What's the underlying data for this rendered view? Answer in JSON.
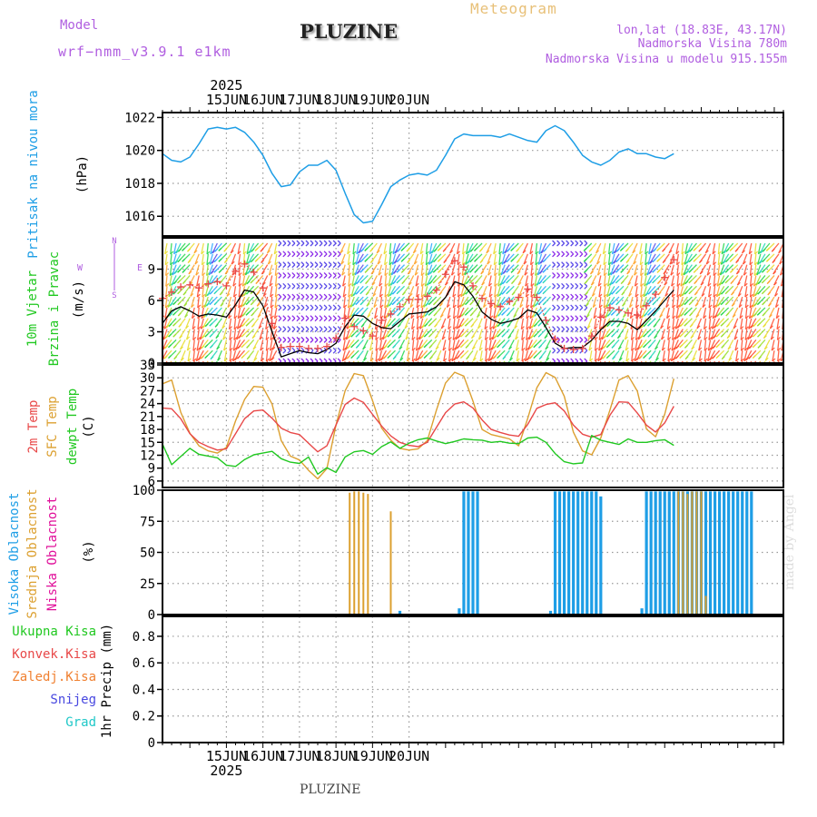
{
  "header": {
    "model_label": "Model",
    "model_name": "wrf−nmm_v3.9.1 e1km",
    "station": "PLUZINE",
    "title": "Meteogram",
    "coords": "lon,lat (18.83E, 43.17N)",
    "altitude": "Nadmorska Visina 780m",
    "model_altitude": "Nadmorska Visina u modelu 915.155m",
    "watermark": "made by Angel",
    "footer_station": "PLUZINE"
  },
  "colors": {
    "pressure": "#1e9ee6",
    "temp2m": "#e84848",
    "sfc": "#dca030",
    "dewpt": "#20c820",
    "high_cloud": "#1e9ee6",
    "mid_cloud": "#dca030",
    "low_cloud": "#e0109a",
    "wind_speed": "#000000",
    "gust": "#e84848",
    "model": "#b05ee0",
    "ukupna": "#20c820",
    "konvek": "#e84848",
    "zaledj": "#f08030",
    "snijeg": "#4848e0",
    "grad": "#20c8c8"
  },
  "time_axis": {
    "year": "2025",
    "days": [
      "15JUN",
      "16JUN",
      "17JUN",
      "18JUN",
      "19JUN",
      "20JUN"
    ]
  },
  "chart_data": [
    {
      "type": "line",
      "panel": "pressure",
      "ylabel_lines": [
        "Pritisak na nivou mora",
        "(hPa)"
      ],
      "ylim": [
        1014.8,
        1022.3
      ],
      "yticks": [
        1016,
        1018,
        1020,
        1022
      ],
      "series": [
        {
          "values": [
            1019.8,
            1019.4,
            1019.3,
            1019.6,
            1020.4,
            1021.3,
            1021.4,
            1021.3,
            1021.4,
            1021.1,
            1020.5,
            1019.7,
            1018.6,
            1017.8,
            1017.9,
            1018.7,
            1019.1,
            1019.1,
            1019.4,
            1018.8,
            1017.4,
            1016.1,
            1015.6,
            1015.7,
            1016.7,
            1017.8,
            1018.2,
            1018.5,
            1018.6,
            1018.5,
            1018.8,
            1019.7,
            1020.7,
            1021.0,
            1020.9,
            1020.9,
            1020.9,
            1020.8,
            1021.0,
            1020.8,
            1020.6,
            1020.5,
            1021.2,
            1021.5,
            1021.2,
            1020.5,
            1019.7,
            1019.3,
            1019.1,
            1019.4,
            1019.9,
            1020.1,
            1019.8,
            1019.8,
            1019.6,
            1019.5,
            1019.8
          ]
        }
      ]
    },
    {
      "type": "line",
      "panel": "wind",
      "ylabel_lines": [
        "10m Vjetar",
        "Brzina i Pravac",
        "(m/s)"
      ],
      "compass": {
        "n": "N",
        "w": "W",
        "e": "E",
        "s": "S"
      },
      "ylim": [
        0,
        12
      ],
      "yticks": [
        0,
        3,
        6,
        9
      ],
      "series": [
        {
          "values": [
            3.8,
            5.0,
            5.4,
            5.0,
            4.5,
            4.7,
            4.6,
            4.4,
            5.6,
            7.0,
            6.8,
            5.5,
            3.0,
            0.6,
            0.9,
            1.2,
            1.0,
            0.9,
            1.3,
            1.9,
            3.5,
            4.6,
            4.5,
            3.8,
            3.4,
            3.3,
            4.0,
            4.7,
            4.8,
            4.9,
            5.4,
            6.3,
            7.8,
            7.5,
            6.4,
            4.9,
            4.2,
            3.8,
            4.0,
            4.3,
            5.1,
            4.8,
            3.4,
            1.9,
            1.4,
            1.5,
            1.5,
            2.2,
            3.2,
            4.0,
            4.0,
            3.8,
            3.2,
            4.1,
            5.0,
            6.0,
            7.0
          ]
        },
        {
          "values": [
            6.2,
            6.8,
            7.3,
            7.5,
            7.2,
            7.6,
            7.8,
            7.4,
            8.8,
            9.5,
            8.7,
            7.2,
            3.8,
            1.5,
            1.6,
            1.6,
            1.4,
            1.4,
            1.6,
            2.4,
            4.3,
            3.5,
            3.1,
            2.6,
            4.1,
            4.7,
            5.4,
            6.1,
            6.1,
            6.4,
            7.0,
            8.5,
            9.8,
            9.2,
            7.4,
            6.2,
            5.7,
            5.4,
            5.9,
            6.3,
            7.1,
            6.3,
            4.1,
            2.3,
            1.4,
            1.3,
            1.4,
            2.6,
            4.4,
            5.3,
            5.1,
            4.8,
            4.6,
            5.5,
            6.6,
            8.2,
            9.9
          ]
        }
      ]
    },
    {
      "type": "line",
      "panel": "temperature",
      "ylabel_lines": [
        "2m Temp",
        "SFC Temp",
        "dewpt Temp",
        "(C)"
      ],
      "ylim": [
        4.5,
        33
      ],
      "yticks": [
        6,
        9,
        12,
        15,
        18,
        21,
        24,
        27,
        30,
        33
      ],
      "series": [
        {
          "values": [
            23.0,
            22.8,
            20.5,
            17.0,
            15.0,
            14.0,
            13.2,
            13.5,
            17.0,
            20.5,
            22.3,
            22.5,
            20.6,
            18.3,
            17.3,
            16.8,
            14.8,
            12.8,
            14.2,
            19.0,
            23.8,
            25.3,
            24.3,
            21.5,
            18.8,
            16.5,
            15.0,
            14.3,
            14.0,
            15.0,
            18.5,
            21.9,
            23.9,
            24.4,
            23.0,
            20.2,
            18.0,
            17.3,
            16.7,
            16.4,
            19.2,
            22.9,
            23.8,
            24.2,
            22.3,
            19.0,
            16.9,
            16.2,
            16.8,
            21.3,
            24.4,
            24.3,
            21.8,
            19.0,
            17.4,
            19.5,
            23.4
          ]
        },
        {
          "values": [
            28.6,
            29.5,
            22.0,
            17.1,
            14.2,
            13.0,
            12.5,
            13.8,
            20.0,
            25.0,
            28.0,
            27.8,
            23.9,
            15.4,
            11.8,
            10.9,
            8.5,
            6.5,
            8.9,
            19.0,
            27.0,
            31.0,
            30.5,
            24.7,
            18.3,
            15.5,
            13.6,
            13.2,
            13.5,
            15.4,
            22.5,
            28.8,
            31.3,
            30.4,
            24.6,
            18.0,
            16.8,
            16.3,
            15.8,
            14.2,
            20.6,
            27.7,
            31.2,
            30.1,
            25.7,
            17.4,
            13.0,
            12.1,
            16.0,
            22.5,
            29.5,
            30.5,
            26.9,
            18.1,
            16.3,
            21.5,
            29.8
          ]
        },
        {
          "values": [
            14.6,
            9.8,
            11.7,
            13.6,
            12.2,
            11.8,
            11.4,
            9.7,
            9.4,
            11.0,
            12.1,
            12.5,
            12.9,
            11.2,
            10.4,
            10.1,
            11.6,
            7.6,
            9.1,
            8.0,
            11.6,
            12.8,
            13.1,
            12.2,
            14.0,
            15.1,
            13.6,
            14.8,
            15.6,
            16.0,
            15.3,
            14.7,
            15.2,
            15.8,
            15.6,
            15.5,
            15.0,
            15.2,
            14.8,
            14.7,
            16.0,
            16.2,
            15.0,
            12.4,
            10.5,
            10.0,
            10.2,
            16.6,
            15.5,
            15.0,
            14.5,
            15.8,
            15.0,
            15.0,
            15.4,
            15.6,
            14.3
          ]
        }
      ]
    },
    {
      "type": "bar",
      "panel": "clouds",
      "ylabel_lines": [
        "Visoka Oblacnost",
        "Srednja Oblacnost",
        "Niska Oblacnost",
        "(%)"
      ],
      "ylim": [
        0,
        100
      ],
      "yticks": [
        0,
        25,
        50,
        75,
        100
      ],
      "series": [
        {
          "x": [
            52,
            65,
            66,
            67,
            68,
            69,
            85,
            86,
            87,
            88,
            89,
            90,
            91,
            92,
            93,
            94,
            95,
            96,
            105,
            106,
            107,
            108,
            109,
            110,
            111,
            112,
            113,
            114,
            115,
            116,
            117,
            118,
            119,
            120,
            121,
            122,
            123,
            124,
            125,
            126,
            127,
            128,
            129
          ],
          "values": [
            3,
            5,
            99,
            99,
            99,
            99,
            3,
            99,
            99,
            99,
            99,
            99,
            99,
            99,
            99,
            99,
            99,
            95,
            5,
            99,
            99,
            99,
            99,
            99,
            99,
            99,
            99,
            99,
            99,
            99,
            99,
            99,
            99,
            99,
            99,
            99,
            99,
            99,
            99,
            99,
            99,
            99,
            99
          ]
        },
        {
          "x": [
            41,
            42,
            43,
            44,
            45,
            50,
            113,
            114,
            115,
            116,
            117,
            118,
            119
          ],
          "values": [
            98,
            99,
            99,
            98,
            97,
            83,
            99,
            99,
            97,
            99,
            99,
            99,
            15
          ]
        },
        {
          "x": [],
          "values": []
        }
      ]
    },
    {
      "type": "bar",
      "panel": "precipitation",
      "ylabel_lines": [
        "1hr Precip (mm)"
      ],
      "legend": [
        "Ukupna Kisa",
        "Konvek.Kisa",
        "Zaledj.Kisa",
        "Snijeg",
        "Grad"
      ],
      "ylim": [
        0,
        0.95
      ],
      "yticks": [
        0,
        0.2,
        0.4,
        0.6,
        0.8
      ],
      "series": []
    }
  ]
}
